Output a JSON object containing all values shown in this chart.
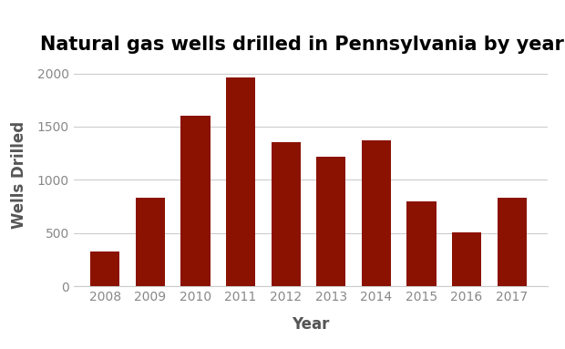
{
  "title": "Natural gas wells drilled in Pennsylvania by year",
  "xlabel": "Year",
  "ylabel": "Wells Drilled",
  "years": [
    2008,
    2009,
    2010,
    2011,
    2012,
    2013,
    2014,
    2015,
    2016,
    2017
  ],
  "values": [
    330,
    830,
    1600,
    1960,
    1350,
    1215,
    1370,
    800,
    510,
    830
  ],
  "bar_color": "#8B1200",
  "background_color": "#ffffff",
  "ylim": [
    0,
    2100
  ],
  "yticks": [
    0,
    500,
    1000,
    1500,
    2000
  ],
  "grid_color": "#cccccc",
  "title_fontsize": 15,
  "axis_label_fontsize": 12,
  "tick_fontsize": 10,
  "tick_color": "#888888",
  "axis_label_color": "#555555"
}
